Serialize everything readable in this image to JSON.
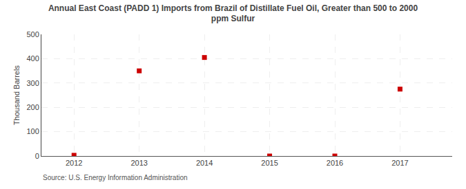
{
  "chart_data": {
    "type": "scatter",
    "title": "Annual East Coast (PADD 1) Imports from Brazil of Distillate Fuel Oil, Greater than 500 to 2000\nppm Sulfur",
    "ylabel": "Thousand Barrels",
    "annotations": [
      "Source: U.S. Energy Information Administration"
    ],
    "x": [
      2012,
      2013,
      2014,
      2015,
      2016,
      2017
    ],
    "values": [
      3,
      350,
      405,
      0,
      0,
      275
    ],
    "color": "#cc0000",
    "marker": "square",
    "xlim": [
      2011.5,
      2017.8
    ],
    "xticks": [
      2012,
      2013,
      2014,
      2015,
      2016,
      2017
    ],
    "ylim": [
      0,
      500
    ],
    "yticks": [
      0,
      100,
      200,
      300,
      400,
      500
    ],
    "grid": true
  }
}
